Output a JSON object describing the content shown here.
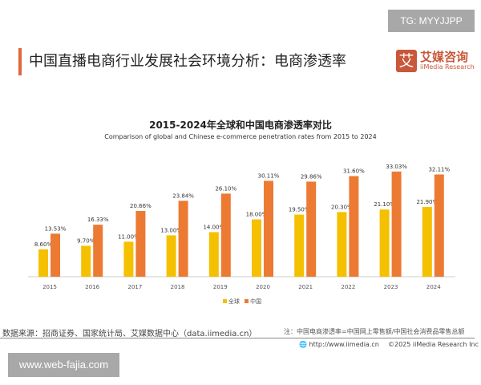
{
  "watermark_top": "TG: MYYJJPP",
  "watermark_bottom": "www.web-fajia.com",
  "header": {
    "title": "中国直播电商行业发展社会环境分析：电商渗透率",
    "logo_mark": "艾",
    "logo_cn": "艾媒咨询",
    "logo_en": "iiMedia Research"
  },
  "chart_data": {
    "type": "bar",
    "title": "2015-2024年全球和中国电商渗透率对比",
    "subtitle": "Comparison of global and Chinese e-commerce penetration rates from 2015 to 2024",
    "categories": [
      "2015",
      "2016",
      "2017",
      "2018",
      "2019",
      "2020",
      "2021",
      "2022",
      "2023",
      "2024"
    ],
    "series": [
      {
        "name": "全球",
        "color": "#f5c000",
        "values": [
          8.6,
          9.7,
          11.0,
          13.0,
          14.0,
          18.0,
          19.5,
          20.3,
          21.1,
          21.9
        ],
        "labels": [
          "8.60%",
          "9.70%",
          "11.00%",
          "13.00%",
          "14.00%",
          "18.00%",
          "19.50%",
          "20.30%",
          "21.10%",
          "21.90%"
        ]
      },
      {
        "name": "中国",
        "color": "#ec7a33",
        "values": [
          13.53,
          16.33,
          20.66,
          23.84,
          26.1,
          30.11,
          29.86,
          31.6,
          33.03,
          32.11
        ],
        "labels": [
          "13.53%",
          "16.33%",
          "20.66%",
          "23.84%",
          "26.10%",
          "30.11%",
          "29.86%",
          "31.60%",
          "33.03%",
          "32.11%"
        ]
      }
    ],
    "ylim": [
      0,
      35
    ],
    "grid": false,
    "legend": "bottom"
  },
  "footer": {
    "source": "数据来源：招商证券、国家统计局、艾媒数据中心（data.iimedia.cn）",
    "note": "注：中国电商渗透率=中国网上零售额/中国社会消费品零售总额",
    "website": "http://www.iimedia.cn",
    "copyright": "©2025  iiMedia Research  Inc"
  }
}
